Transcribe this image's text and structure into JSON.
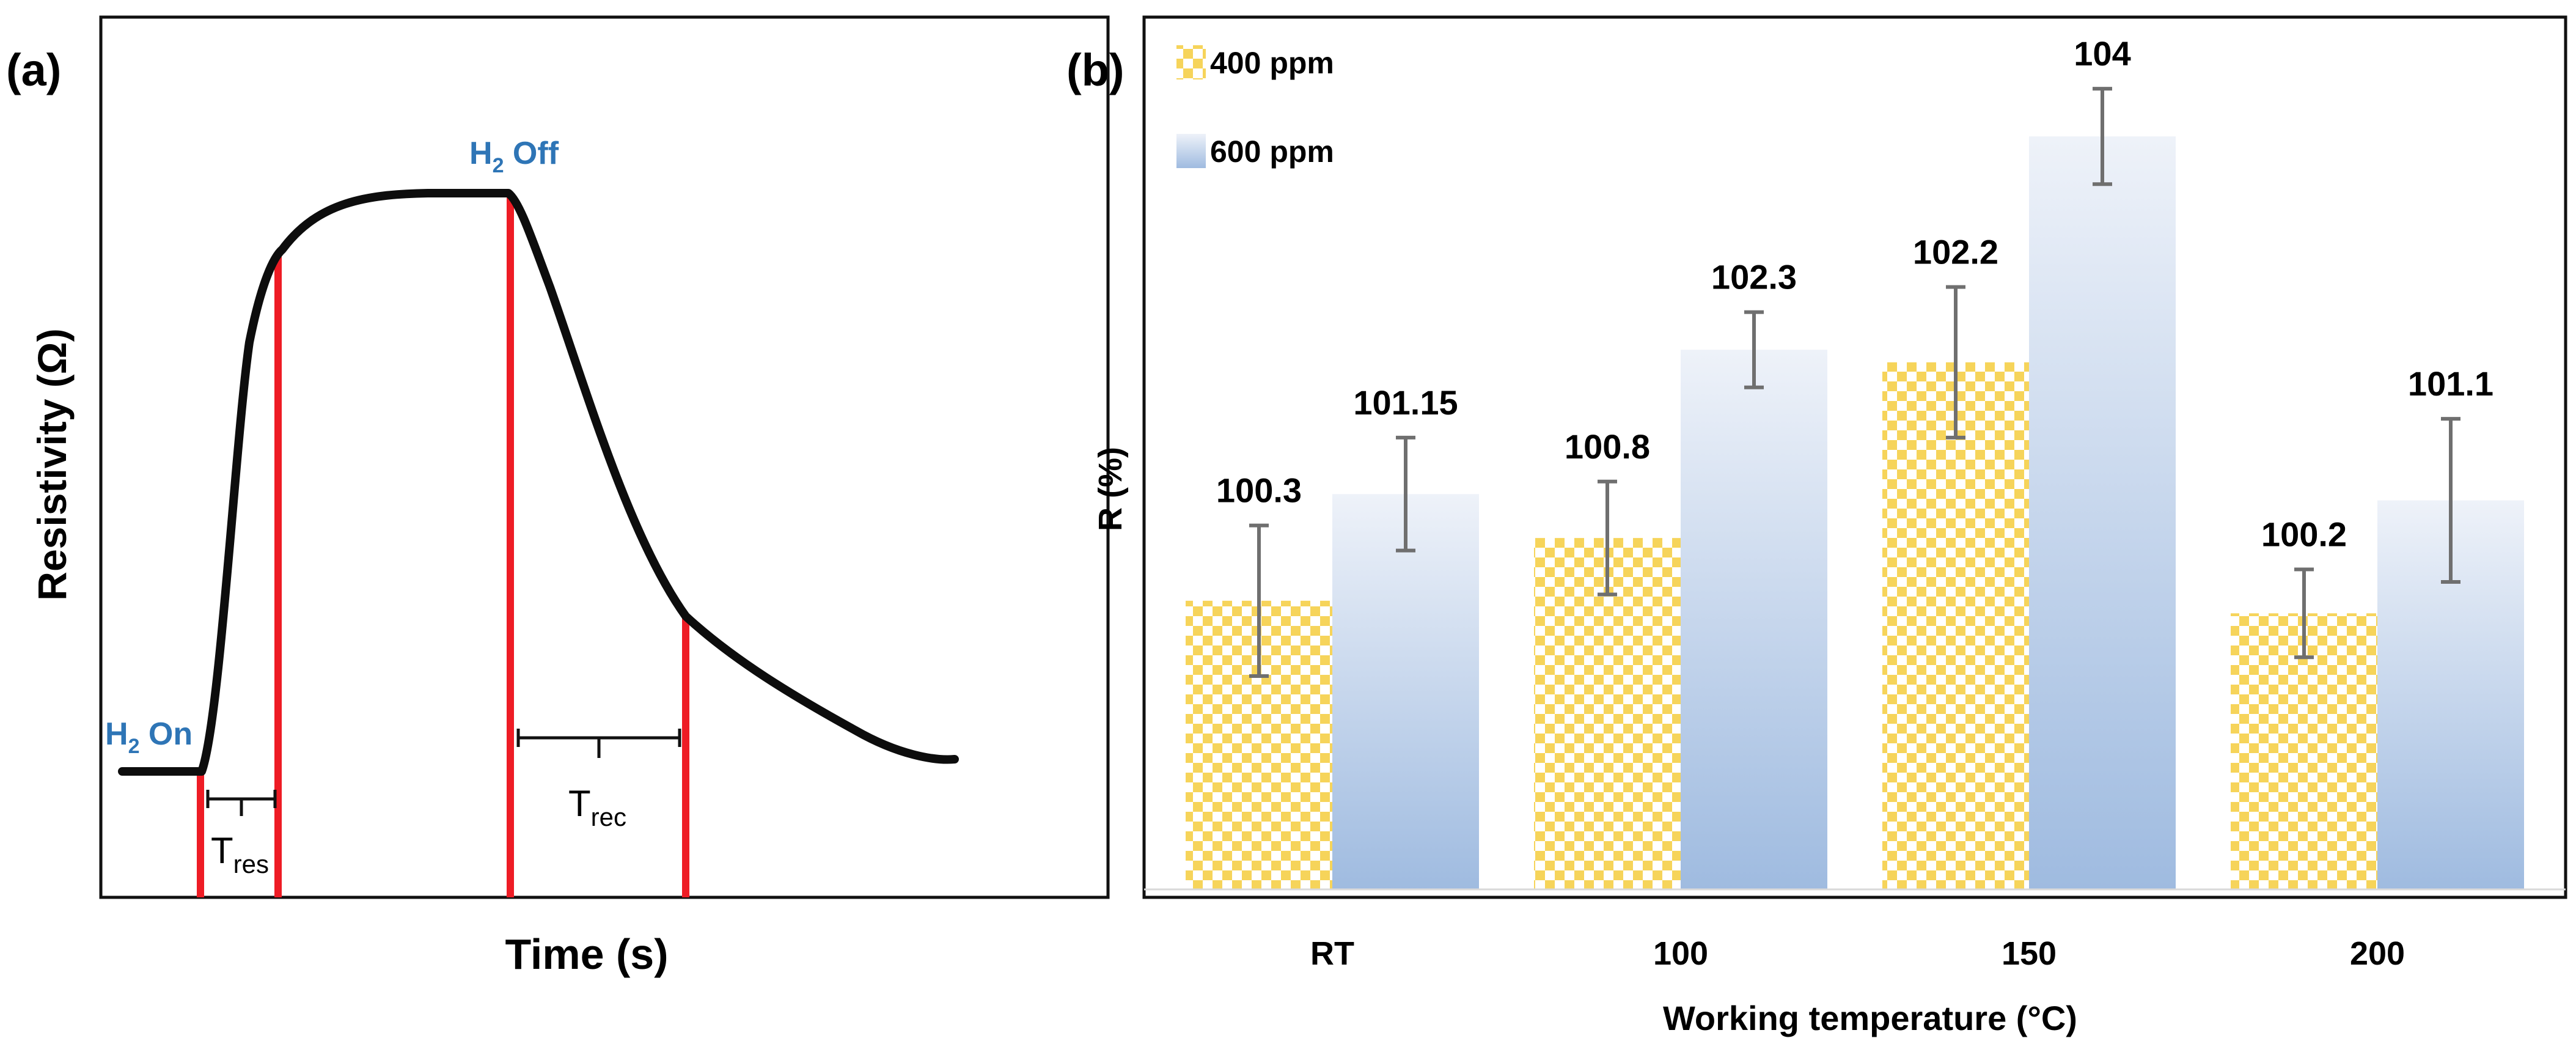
{
  "panel_a": {
    "label": "(a)",
    "xlabel": "Time (s)",
    "ylabel": "Resistivity (Ω)",
    "h2_on": {
      "prefix": "H",
      "sub": "2",
      "suffix": " On"
    },
    "h2_off": {
      "prefix": "H",
      "sub": "2",
      "suffix": " Off"
    },
    "t_res": {
      "main": "T",
      "sub": "res"
    },
    "t_rec": {
      "main": "T",
      "sub": "rec"
    }
  },
  "panel_b": {
    "label": "(b)"
  },
  "colors": {
    "curve": "#0d0d0d",
    "markers": "#ee1c25",
    "annotation_blue": "#2e75b6",
    "checker": "#f6d45a",
    "gradient_top": "#eef2f9",
    "gradient_bottom": "#9fbbe0",
    "error_bar": "#6f6f6f"
  },
  "chart_data": [
    {
      "type": "line",
      "title": "",
      "xlabel": "Time (s)",
      "ylabel": "Resistivity (Ω)",
      "description_labels": [
        "H2 On",
        "H2 Off",
        "Tres",
        "Trec"
      ]
    },
    {
      "type": "bar",
      "title": "",
      "xlabel": "Working temperature (°C)",
      "ylabel": "R (%)",
      "categories": [
        "RT",
        "100",
        "150",
        "200"
      ],
      "ylim": [
        98,
        104.6
      ],
      "legend_position": "top-left",
      "series": [
        {
          "name": "400 ppm",
          "values": [
            100.3,
            100.8,
            102.2,
            100.2
          ],
          "labels": [
            "100.3",
            "100.8",
            "102.2",
            "100.2"
          ],
          "errors": [
            0.6,
            0.45,
            0.6,
            0.35
          ]
        },
        {
          "name": "600 ppm",
          "values": [
            101.15,
            102.3,
            104,
            101.1
          ],
          "labels": [
            "101.15",
            "102.3",
            "104",
            "101.1"
          ],
          "errors": [
            0.45,
            0.3,
            0.38,
            0.65
          ]
        }
      ]
    }
  ]
}
